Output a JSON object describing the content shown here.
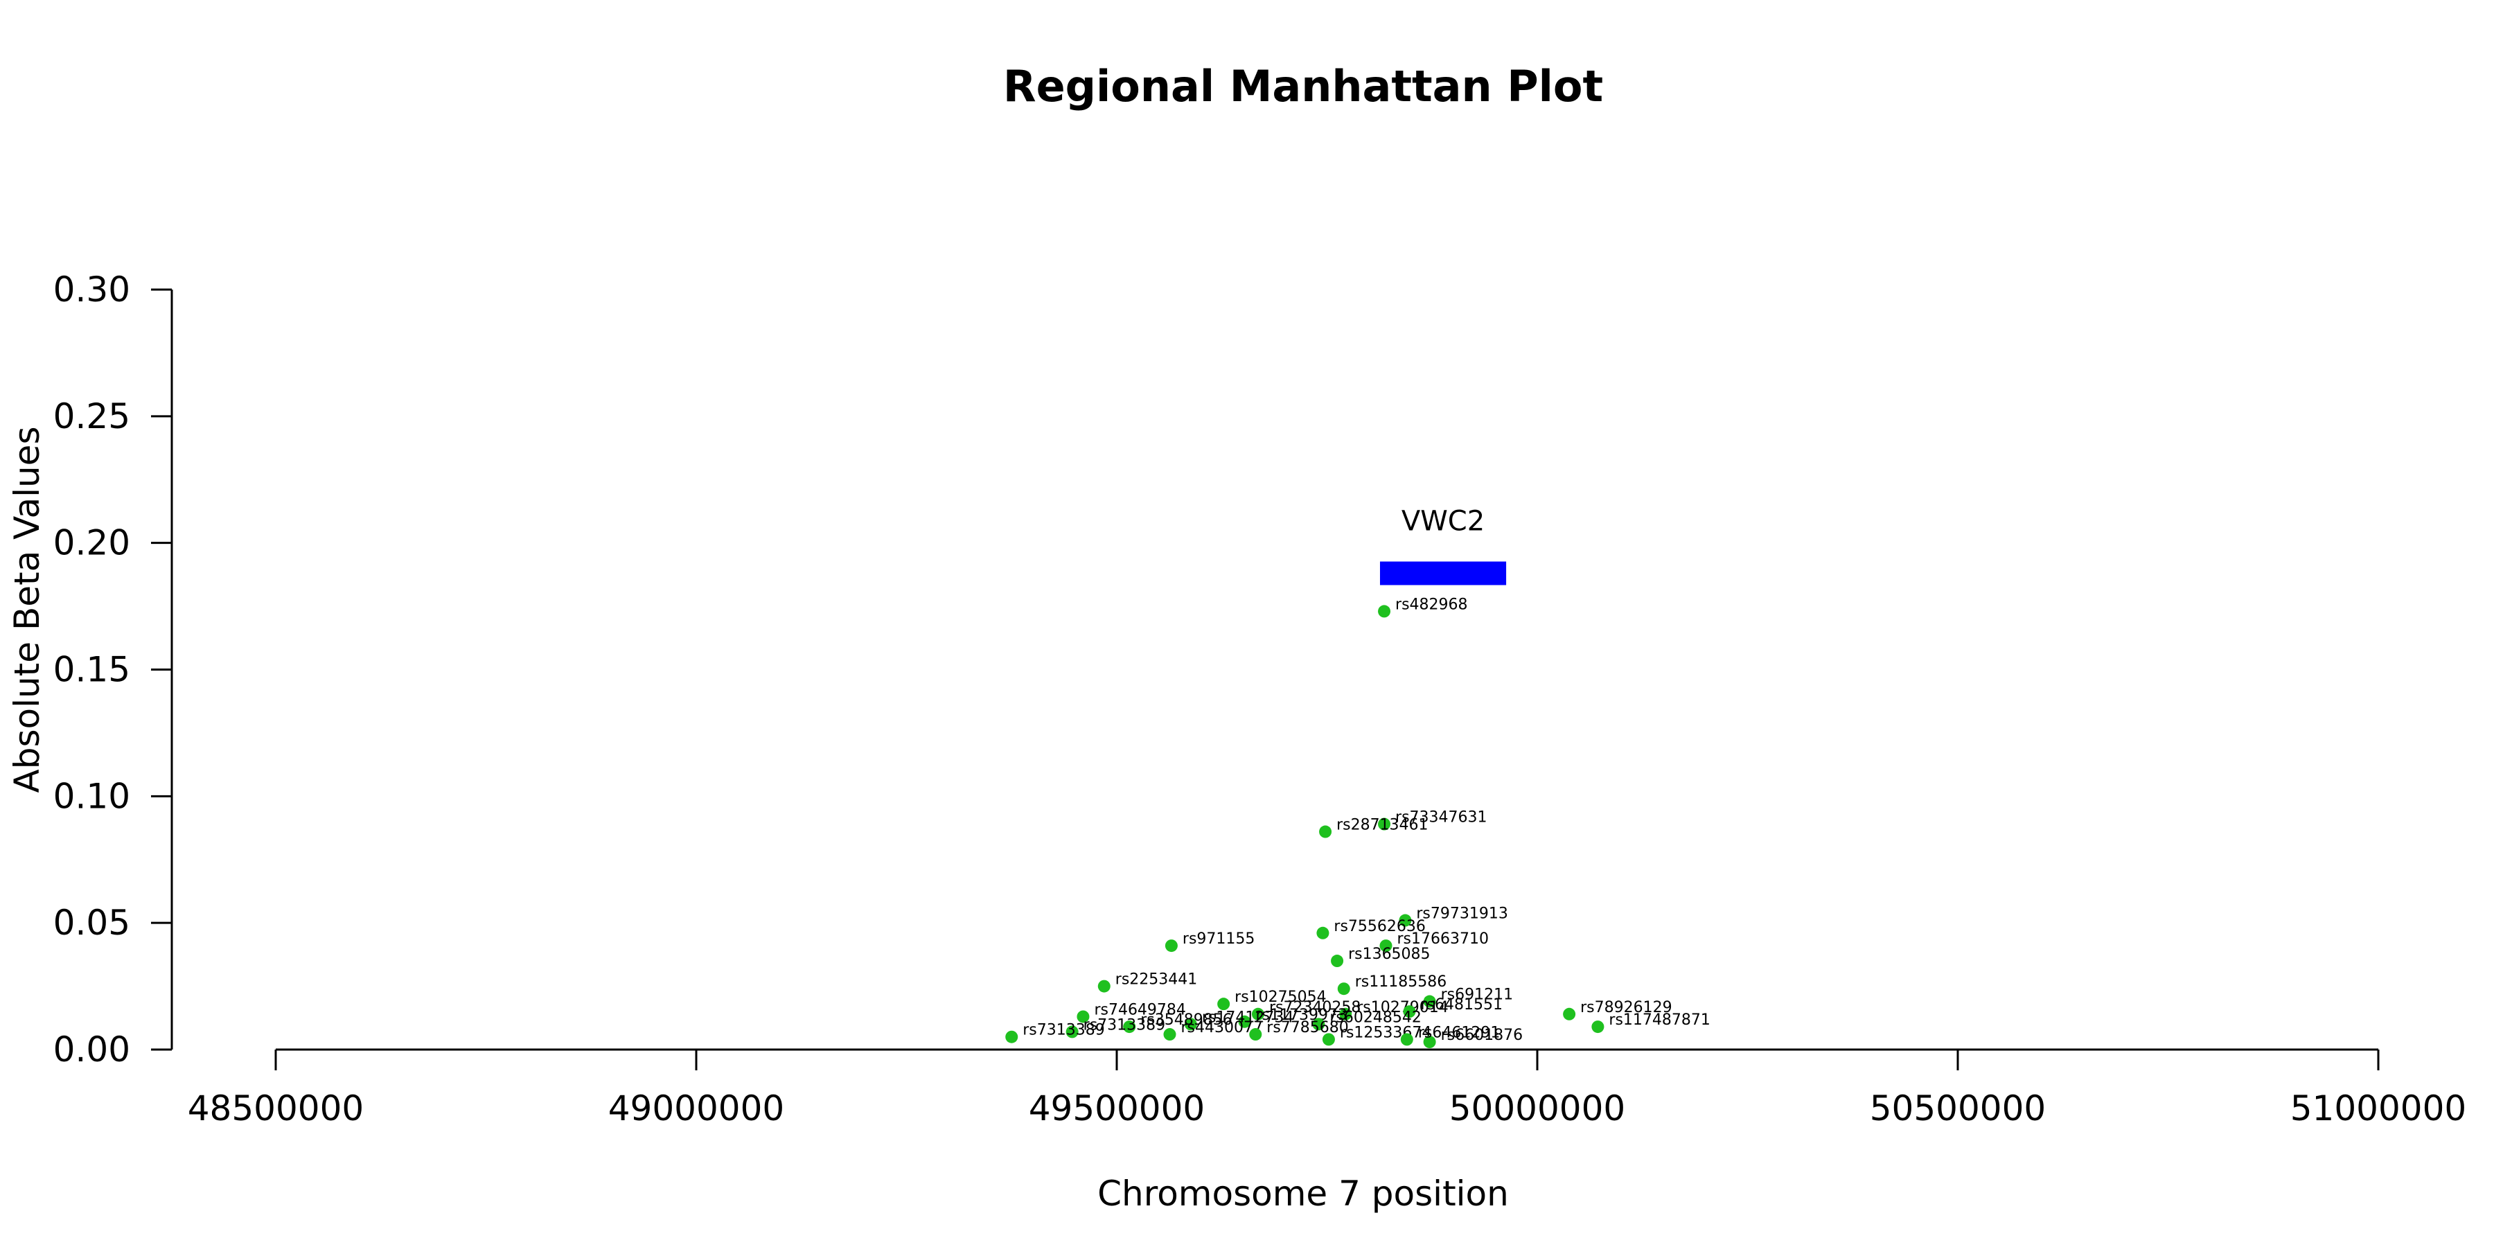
{
  "chart_data": {
    "type": "scatter",
    "title": "Regional Manhattan Plot",
    "xlabel": "Chromosome 7 position",
    "ylabel": "Absolute Beta Values",
    "xlim": [
      48500000,
      51000000
    ],
    "ylim": [
      0,
      0.3
    ],
    "x_ticks": [
      48500000,
      49000000,
      49500000,
      50000000,
      50500000,
      51000000
    ],
    "x_tick_labels": [
      "48500000",
      "49000000",
      "49500000",
      "50000000",
      "50500000",
      "51000000"
    ],
    "y_ticks": [
      0,
      0.05,
      0.1,
      0.15,
      0.2,
      0.25,
      0.3
    ],
    "y_tick_labels": [
      "0.00",
      "0.05",
      "0.10",
      "0.15",
      "0.20",
      "0.25",
      "0.30"
    ],
    "grid": false,
    "point_color": "#1fc01f",
    "gene": {
      "name": "VWC2",
      "start": 49813000,
      "end": 49963000,
      "y": 0.188,
      "color": "#0000ff"
    },
    "points": [
      {
        "snp": "rs482968",
        "x": 49818000,
        "y": 0.173
      },
      {
        "snp": "rs73347631",
        "x": 49818000,
        "y": 0.089
      },
      {
        "snp": "rs28713461",
        "x": 49748000,
        "y": 0.086
      },
      {
        "snp": "rs79731913",
        "x": 49843000,
        "y": 0.051
      },
      {
        "snp": "rs75562636",
        "x": 49745000,
        "y": 0.046
      },
      {
        "snp": "rs17663710",
        "x": 49820000,
        "y": 0.041
      },
      {
        "snp": "rs971155",
        "x": 49565000,
        "y": 0.041
      },
      {
        "snp": "rs1365085",
        "x": 49762000,
        "y": 0.035
      },
      {
        "snp": "rs2253441",
        "x": 49485000,
        "y": 0.025
      },
      {
        "snp": "rs11185586",
        "x": 49770000,
        "y": 0.024
      },
      {
        "snp": "rs691211",
        "x": 49872000,
        "y": 0.019
      },
      {
        "snp": "rs10275054",
        "x": 49627000,
        "y": 0.018
      },
      {
        "snp": "rs78926129",
        "x": 50038000,
        "y": 0.014
      },
      {
        "snp": "rs10279014",
        "x": 49772000,
        "y": 0.014
      },
      {
        "snp": "rs6481551",
        "x": 49848000,
        "y": 0.015
      },
      {
        "snp": "rs74649784",
        "x": 49460000,
        "y": 0.013
      },
      {
        "snp": "rs72340258",
        "x": 49668000,
        "y": 0.014
      },
      {
        "snp": "rs11739973",
        "x": 49652000,
        "y": 0.011
      },
      {
        "snp": "rs60248542",
        "x": 49740000,
        "y": 0.01
      },
      {
        "snp": "rs117487871",
        "x": 50072000,
        "y": 0.009
      },
      {
        "snp": "rs17412734",
        "x": 49588000,
        "y": 0.01
      },
      {
        "snp": "rs35489856",
        "x": 49515000,
        "y": 0.009
      },
      {
        "snp": "rs4430077",
        "x": 49563000,
        "y": 0.006
      },
      {
        "snp": "rs7785680",
        "x": 49665000,
        "y": 0.006
      },
      {
        "snp": "rs7313389",
        "x": 49447000,
        "y": 0.007
      },
      {
        "snp": "rs7313389",
        "x": 49375000,
        "y": 0.005
      },
      {
        "snp": "rs12533674",
        "x": 49752000,
        "y": 0.004
      },
      {
        "snp": "rs6601876",
        "x": 49872000,
        "y": 0.003
      },
      {
        "snp": "rs6461291",
        "x": 49845000,
        "y": 0.004
      }
    ]
  }
}
